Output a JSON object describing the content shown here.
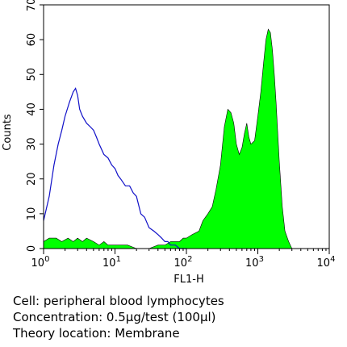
{
  "chart_data": {
    "type": "area",
    "xlabel": "FL1-H",
    "ylabel": "Counts",
    "xscale": "log",
    "xlim": [
      1,
      10000
    ],
    "ylim": [
      0,
      70
    ],
    "x_tick_labels": [
      {
        "base": "10",
        "exp": "0",
        "value": 1
      },
      {
        "base": "10",
        "exp": "1",
        "value": 10
      },
      {
        "base": "10",
        "exp": "2",
        "value": 100
      },
      {
        "base": "10",
        "exp": "3",
        "value": 1000
      },
      {
        "base": "10",
        "exp": "4",
        "value": 10000
      }
    ],
    "y_ticks": [
      0,
      10,
      20,
      30,
      40,
      50,
      60,
      70
    ],
    "grid": false,
    "series": [
      {
        "kind": "outline",
        "color": "#1010c8",
        "x": [
          1,
          1.2,
          1.4,
          1.6,
          1.8,
          2.0,
          2.3,
          2.6,
          2.8,
          3.0,
          3.2,
          3.5,
          4.0,
          4.5,
          5.0,
          5.5,
          6,
          7,
          8,
          9,
          10,
          11,
          12,
          14,
          16,
          18,
          20,
          23,
          26,
          30,
          35,
          40,
          45,
          50,
          55,
          60,
          70,
          80,
          90,
          100
        ],
        "values": [
          8,
          15,
          24,
          30,
          34,
          38,
          42,
          45,
          46,
          44,
          40,
          38,
          36,
          35,
          34,
          32,
          30,
          27,
          26,
          24,
          23,
          21,
          20,
          18,
          18,
          16,
          15,
          10,
          9,
          6,
          5,
          4,
          3,
          2,
          2,
          1,
          1,
          0,
          0,
          0
        ]
      },
      {
        "kind": "filled",
        "color": "#00ff00",
        "x": [
          1,
          1.2,
          1.5,
          1.8,
          2.2,
          2.6,
          3,
          3.5,
          4,
          5,
          6,
          7,
          8,
          10,
          12,
          15,
          20,
          30,
          40,
          50,
          60,
          70,
          80,
          90,
          100,
          120,
          150,
          170,
          200,
          230,
          260,
          300,
          340,
          380,
          420,
          460,
          500,
          550,
          600,
          650,
          700,
          750,
          800,
          900,
          1000,
          1100,
          1200,
          1300,
          1400,
          1500,
          1600,
          1700,
          1800,
          2000,
          2200,
          2400,
          2700,
          3000,
          3500,
          4000,
          5000,
          6000,
          8000,
          10000
        ],
        "values": [
          2,
          3,
          3,
          2,
          3,
          2,
          3,
          2,
          3,
          2,
          1,
          2,
          1,
          1,
          1,
          1,
          0,
          0,
          1,
          1,
          2,
          2,
          2,
          3,
          3,
          4,
          5,
          8,
          10,
          12,
          17,
          24,
          35,
          40,
          39,
          36,
          30,
          27,
          29,
          33,
          36,
          32,
          30,
          31,
          38,
          45,
          53,
          60,
          63,
          62,
          57,
          50,
          42,
          25,
          12,
          5,
          2,
          0,
          0,
          0,
          0,
          0,
          0,
          0
        ]
      }
    ]
  },
  "caption": {
    "line1": "Cell: peripheral blood lymphocytes",
    "line2": "Concentration: 0.5μg/test (100μl)",
    "line3": "Theory location: Membrane"
  }
}
